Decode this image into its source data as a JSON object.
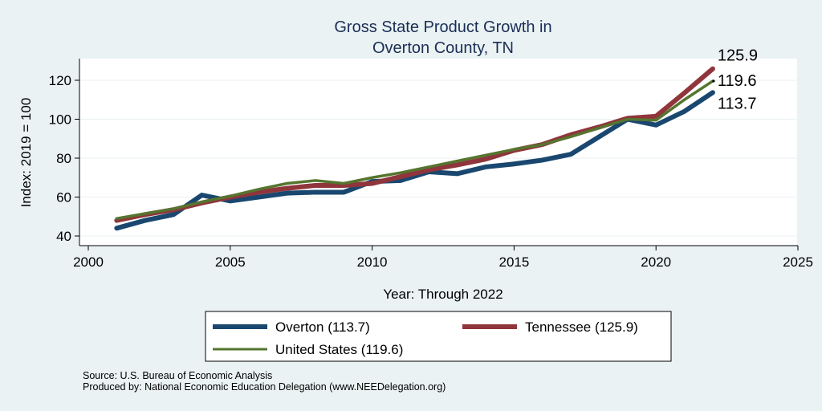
{
  "chart_data": {
    "type": "line",
    "title": [
      "Gross State Product Growth in",
      "Overton County, TN"
    ],
    "xlabel": "Year: Through 2022",
    "ylabel": "Index: 2019 = 100",
    "xlim": [
      2000,
      2025
    ],
    "ylim": [
      40,
      130
    ],
    "xticks": [
      2000,
      2005,
      2010,
      2015,
      2020,
      2025
    ],
    "yticks": [
      40,
      60,
      80,
      100,
      120
    ],
    "grid": true,
    "legend_position": "bottom",
    "x": [
      2001,
      2002,
      2003,
      2004,
      2005,
      2006,
      2007,
      2008,
      2009,
      2010,
      2011,
      2012,
      2013,
      2014,
      2015,
      2016,
      2017,
      2018,
      2019,
      2020,
      2021,
      2022
    ],
    "series": [
      {
        "name": "Overton",
        "legend_label": "Overton  (113.7)",
        "color": "#1a476f",
        "weight": "thick",
        "end_label": "113.7",
        "values": [
          44,
          48,
          51,
          61,
          58,
          60,
          62,
          62.5,
          62.5,
          68,
          68.5,
          73,
          72,
          75.5,
          77,
          79,
          82,
          91,
          100,
          97,
          104,
          113.7
        ]
      },
      {
        "name": "Tennessee",
        "legend_label": "Tennessee (125.9)",
        "color": "#90353b",
        "weight": "thick",
        "end_label": "125.9",
        "values": [
          48,
          51,
          53.5,
          57,
          60,
          62.5,
          64.5,
          66,
          66,
          67,
          70.5,
          74,
          76.5,
          79.5,
          84,
          87,
          92,
          96,
          100.5,
          101.5,
          113.5,
          125.9
        ]
      },
      {
        "name": "United States",
        "legend_label": "United States (119.6)",
        "color": "#55752f",
        "weight": "medium",
        "end_label": "119.6",
        "values": [
          49,
          51.5,
          54,
          57.5,
          60.5,
          64,
          67,
          68.5,
          67,
          70,
          72.5,
          75.5,
          78.5,
          81.5,
          84.5,
          87,
          91,
          95.5,
          100,
          99.5,
          110,
          119.6
        ]
      }
    ],
    "notes": [
      "Source: U.S. Bureau of Economic Analysis",
      "Produced by: National Economic Education Delegation (www.NEEDelegation.org)"
    ]
  }
}
